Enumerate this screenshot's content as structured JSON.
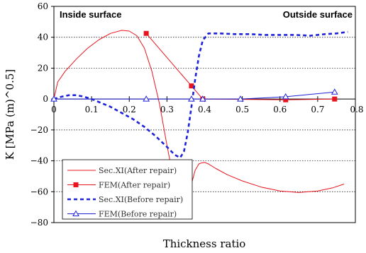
{
  "chart_data": {
    "type": "line",
    "title": "",
    "xlabel": "Thickness ratio",
    "ylabel": "K [MPa (m)^0.5]",
    "xlim": [
      0,
      0.8
    ],
    "ylim": [
      -80,
      60
    ],
    "x_ticks": [
      "0",
      "0.1",
      "0.2",
      "0.3",
      "0.4",
      "0.5",
      "0.6",
      "0.7",
      "0.8"
    ],
    "y_ticks": [
      "60",
      "40",
      "20",
      "0",
      "−20",
      "−40",
      "−60",
      "−80"
    ],
    "grid": "horizontal dotted",
    "legend_position": "bottom-left",
    "annotations": {
      "left": "Inside surface",
      "right": "Outside surface"
    },
    "series": [
      {
        "name": "Sec.XI(After repair)",
        "color": "#e8141e",
        "style": "solid",
        "marker": "none",
        "x": [
          0,
          0.01,
          0.03,
          0.06,
          0.09,
          0.12,
          0.15,
          0.18,
          0.2,
          0.22,
          0.24,
          0.26,
          0.28,
          0.3,
          0.32,
          0.335,
          0.345,
          0.355,
          0.365,
          0.375,
          0.385,
          0.39,
          0.4,
          0.41,
          0.43,
          0.46,
          0.5,
          0.55,
          0.6,
          0.65,
          0.7,
          0.74,
          0.77
        ],
        "y": [
          0,
          11,
          18,
          26,
          33,
          38.5,
          42.5,
          44.5,
          44,
          41,
          33,
          18,
          -3,
          -30,
          -55,
          -65,
          -67,
          -64,
          -55,
          -46,
          -42,
          -41.5,
          -41,
          -42,
          -45,
          -49,
          -53,
          -57,
          -59.5,
          -60.5,
          -59.5,
          -57.5,
          -55
        ]
      },
      {
        "name": "FEM(After repair)",
        "color": "#e8141e",
        "style": "solid",
        "marker": "square",
        "x": [
          0.245,
          0.365,
          0.395,
          0.615,
          0.745
        ],
        "y": [
          42.5,
          8.5,
          0,
          -0.5,
          0
        ]
      },
      {
        "name": "Sec.XI(Before repair)",
        "color": "#1e22d8",
        "style": "dashed",
        "marker": "none",
        "x": [
          0,
          0.02,
          0.04,
          0.06,
          0.08,
          0.1,
          0.12,
          0.15,
          0.18,
          0.21,
          0.24,
          0.27,
          0.3,
          0.32,
          0.335,
          0.345,
          0.355,
          0.365,
          0.375,
          0.385,
          0.395,
          0.41,
          0.44,
          0.48,
          0.52,
          0.56,
          0.6,
          0.64,
          0.68,
          0.72,
          0.75,
          0.78
        ],
        "y": [
          0,
          1.5,
          2.5,
          2.5,
          1.5,
          0,
          -2,
          -5,
          -9,
          -13,
          -18,
          -24,
          -31,
          -36,
          -38,
          -34,
          -22,
          -5,
          13,
          28,
          38,
          42.5,
          42.5,
          42,
          42,
          41.5,
          41.5,
          41.5,
          41,
          42,
          42.5,
          43.5
        ]
      },
      {
        "name": "FEM(Before repair)",
        "color": "#1e22d8",
        "style": "solid",
        "marker": "triangle",
        "x": [
          0,
          0.245,
          0.365,
          0.395,
          0.495,
          0.615,
          0.745
        ],
        "y": [
          0,
          0,
          0,
          0,
          0,
          1.5,
          4.5
        ]
      }
    ]
  }
}
